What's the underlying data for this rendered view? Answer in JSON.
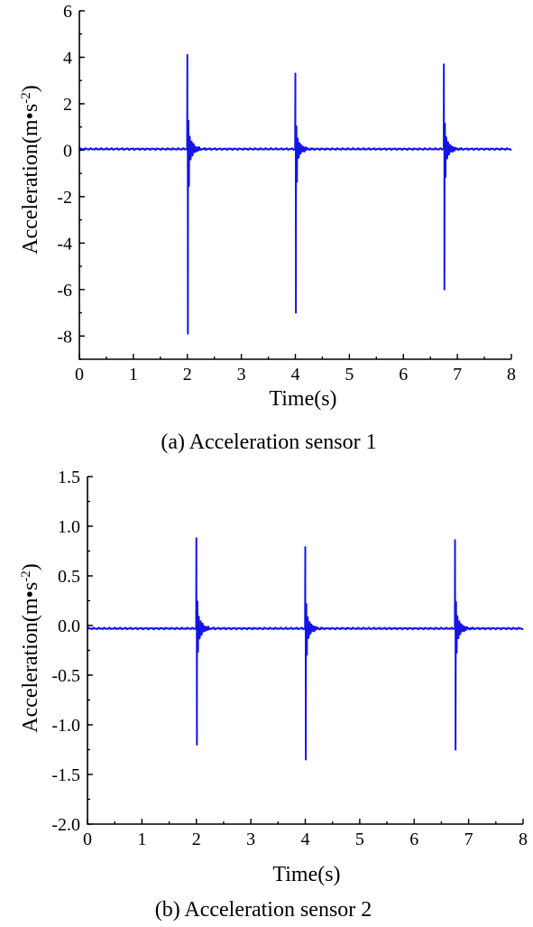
{
  "chart_data": [
    {
      "type": "line",
      "caption": "(a) Acceleration sensor 1",
      "xlabel": "Time(s)",
      "ylabel_main": "Acceleration(m",
      "ylabel_dot": "•",
      "ylabel_s": "s",
      "ylabel_exp": "-2",
      "ylabel_close": ")",
      "xlim": [
        0,
        8
      ],
      "ylim": [
        -9,
        6
      ],
      "xticks": [
        "0",
        "1",
        "2",
        "3",
        "4",
        "5",
        "6",
        "7",
        "8"
      ],
      "yticks": [
        "6",
        "4",
        "2",
        "0",
        "-2",
        "-4",
        "-6",
        "-8"
      ],
      "grid": false,
      "color": "#1414e6",
      "series": [
        {
          "baseline": 0.05,
          "impulses": [
            {
              "t": 2.0,
              "max": 4.1,
              "min": -7.9
            },
            {
              "t": 4.0,
              "max": 3.3,
              "min": -7.0
            },
            {
              "t": 6.75,
              "max": 3.7,
              "min": -6.0
            }
          ]
        }
      ]
    },
    {
      "type": "line",
      "caption": "(b) Acceleration sensor 2",
      "xlabel": "Time(s)",
      "ylabel_main": "Acceleration(m",
      "ylabel_dot": "•",
      "ylabel_s": "s",
      "ylabel_exp": "-2",
      "ylabel_close": ")",
      "xlim": [
        0,
        8
      ],
      "ylim": [
        -2.0,
        1.5
      ],
      "xticks": [
        "0",
        "1",
        "2",
        "3",
        "4",
        "5",
        "6",
        "7",
        "8"
      ],
      "yticks": [
        "1.5",
        "1.0",
        "0.5",
        "0.0",
        "-0.5",
        "-1.0",
        "-1.5",
        "-2.0"
      ],
      "grid": false,
      "color": "#1414e6",
      "series": [
        {
          "baseline": -0.03,
          "impulses": [
            {
              "t": 2.0,
              "max": 0.88,
              "min": -1.2
            },
            {
              "t": 4.0,
              "max": 0.79,
              "min": -1.35
            },
            {
              "t": 6.75,
              "max": 0.86,
              "min": -1.25
            }
          ]
        }
      ]
    }
  ]
}
